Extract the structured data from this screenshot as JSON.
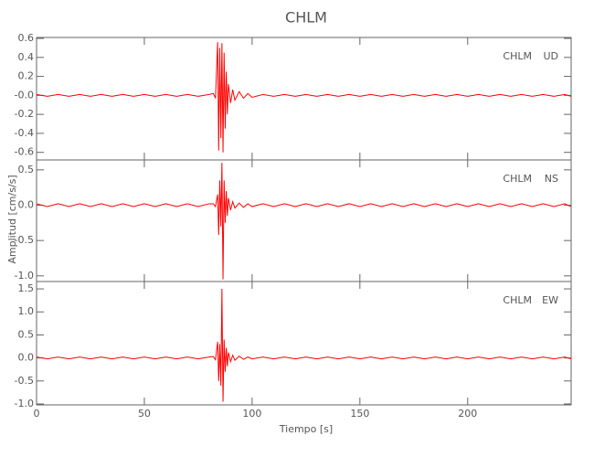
{
  "title": "CHLM",
  "x_label": "Tiempo [s]",
  "y_label": "Amplitud [cm/s/s]",
  "chart_data": [
    {
      "type": "line",
      "station": "CHLM",
      "x": [
        0,
        5,
        10,
        15,
        20,
        25,
        30,
        35,
        40,
        45,
        50,
        55,
        60,
        65,
        70,
        75,
        80,
        82,
        83,
        84,
        84.5,
        85,
        85.5,
        86,
        86.5,
        87,
        87.5,
        88,
        88.5,
        89,
        90,
        91,
        92,
        94,
        96,
        98,
        100,
        105,
        110,
        115,
        120,
        125,
        130,
        135,
        140,
        145,
        150,
        155,
        160,
        165,
        170,
        175,
        180,
        185,
        190,
        195,
        200,
        205,
        210,
        215,
        220,
        225,
        230,
        235,
        240,
        245,
        248
      ],
      "series": [
        {
          "name": "UD",
          "color": "#ff0000",
          "values": [
            0.01,
            -0.01,
            0.01,
            -0.01,
            0.01,
            -0.01,
            0.01,
            -0.01,
            0.01,
            -0.01,
            0.01,
            -0.01,
            0.01,
            -0.01,
            0.01,
            -0.01,
            0.01,
            0.02,
            -0.03,
            0.56,
            -0.58,
            0.5,
            -0.45,
            0.55,
            -0.6,
            0.45,
            -0.35,
            0.25,
            -0.2,
            0.12,
            -0.08,
            0.06,
            -0.05,
            0.04,
            -0.03,
            0.02,
            -0.02,
            0.01,
            -0.01,
            0.01,
            -0.01,
            0.01,
            -0.01,
            0.01,
            -0.01,
            0.01,
            -0.01,
            0.01,
            -0.01,
            0.01,
            -0.01,
            0.01,
            -0.01,
            0.01,
            -0.01,
            0.01,
            -0.01,
            0.01,
            -0.01,
            0.01,
            -0.01,
            0.01,
            -0.01,
            0.01,
            -0.01,
            0.01,
            -0.01
          ]
        }
      ],
      "xlim": [
        0,
        248
      ],
      "ylim": [
        -0.68,
        0.61
      ],
      "yticks": [
        0.6,
        0.4,
        0.2,
        {
          "value": 0,
          "label": "-0.0"
        },
        -0.2,
        -0.4,
        -0.6
      ]
    },
    {
      "type": "line",
      "station": "CHLM",
      "x": [
        0,
        5,
        10,
        15,
        20,
        25,
        30,
        35,
        40,
        45,
        50,
        55,
        60,
        65,
        70,
        75,
        80,
        82,
        83,
        84,
        84.5,
        85,
        85.5,
        86,
        86.5,
        87,
        87.5,
        88,
        88.5,
        89,
        90,
        91,
        92,
        94,
        96,
        98,
        100,
        105,
        110,
        115,
        120,
        125,
        130,
        135,
        140,
        145,
        150,
        155,
        160,
        165,
        170,
        175,
        180,
        185,
        190,
        195,
        200,
        205,
        210,
        215,
        220,
        225,
        230,
        235,
        240,
        245,
        248
      ],
      "series": [
        {
          "name": "NS",
          "color": "#ff0000",
          "values": [
            0.02,
            -0.02,
            0.02,
            -0.02,
            0.02,
            -0.02,
            0.02,
            -0.02,
            0.02,
            -0.02,
            0.02,
            -0.02,
            0.02,
            -0.02,
            0.02,
            -0.02,
            0.02,
            0.02,
            -0.02,
            0.15,
            -0.42,
            0.35,
            -0.3,
            0.6,
            -1.05,
            0.35,
            -0.25,
            0.2,
            -0.15,
            0.1,
            -0.07,
            0.05,
            -0.04,
            0.03,
            -0.03,
            0.02,
            -0.02,
            0.02,
            -0.02,
            0.02,
            -0.02,
            0.02,
            -0.02,
            0.02,
            -0.02,
            0.02,
            -0.02,
            0.02,
            -0.02,
            0.02,
            -0.02,
            0.02,
            -0.02,
            0.02,
            -0.02,
            0.02,
            -0.02,
            0.02,
            -0.02,
            0.02,
            -0.02,
            0.02,
            -0.02,
            0.02,
            -0.02,
            0.02,
            -0.02
          ]
        }
      ],
      "xlim": [
        0,
        248
      ],
      "ylim": [
        -1.08,
        0.64
      ],
      "yticks": [
        0.5,
        {
          "value": 0,
          "label": "0.0"
        },
        -0.5,
        {
          "value": -1,
          "label": "-1.0"
        }
      ]
    },
    {
      "type": "line",
      "station": "CHLM",
      "x": [
        0,
        5,
        10,
        15,
        20,
        25,
        30,
        35,
        40,
        45,
        50,
        55,
        60,
        65,
        70,
        75,
        80,
        82,
        83,
        84,
        84.5,
        85,
        85.5,
        86,
        86.5,
        87,
        87.5,
        88,
        88.5,
        89,
        90,
        91,
        92,
        94,
        96,
        98,
        100,
        105,
        110,
        115,
        120,
        125,
        130,
        135,
        140,
        145,
        150,
        155,
        160,
        165,
        170,
        175,
        180,
        185,
        190,
        195,
        200,
        205,
        210,
        215,
        220,
        225,
        230,
        235,
        240,
        245,
        248
      ],
      "series": [
        {
          "name": "EW",
          "color": "#ff0000",
          "values": [
            0.02,
            -0.02,
            0.02,
            -0.02,
            0.02,
            -0.02,
            0.02,
            -0.02,
            0.02,
            -0.02,
            0.02,
            -0.02,
            0.02,
            -0.02,
            0.02,
            -0.02,
            0.02,
            0.03,
            -0.04,
            0.35,
            -0.5,
            0.3,
            -0.6,
            1.5,
            -0.95,
            0.4,
            -0.3,
            0.22,
            -0.18,
            0.12,
            -0.08,
            0.06,
            -0.05,
            0.04,
            -0.03,
            0.02,
            -0.02,
            0.02,
            -0.02,
            0.02,
            -0.02,
            0.02,
            -0.02,
            0.02,
            -0.02,
            0.02,
            -0.02,
            0.02,
            -0.02,
            0.02,
            -0.02,
            0.02,
            -0.02,
            0.02,
            -0.02,
            0.02,
            -0.02,
            0.02,
            -0.02,
            0.02,
            -0.02,
            0.02,
            -0.02,
            0.02,
            -0.02,
            0.02,
            -0.02
          ]
        }
      ],
      "xlim": [
        0,
        248
      ],
      "ylim": [
        -1.02,
        1.66
      ],
      "yticks": [
        1.5,
        {
          "value": 1,
          "label": "1.0"
        },
        0.5,
        {
          "value": 0,
          "label": "0.0"
        },
        -0.5,
        {
          "value": -1,
          "label": "-1.0"
        }
      ],
      "xticks": [
        0,
        50,
        100,
        150,
        200
      ]
    }
  ]
}
